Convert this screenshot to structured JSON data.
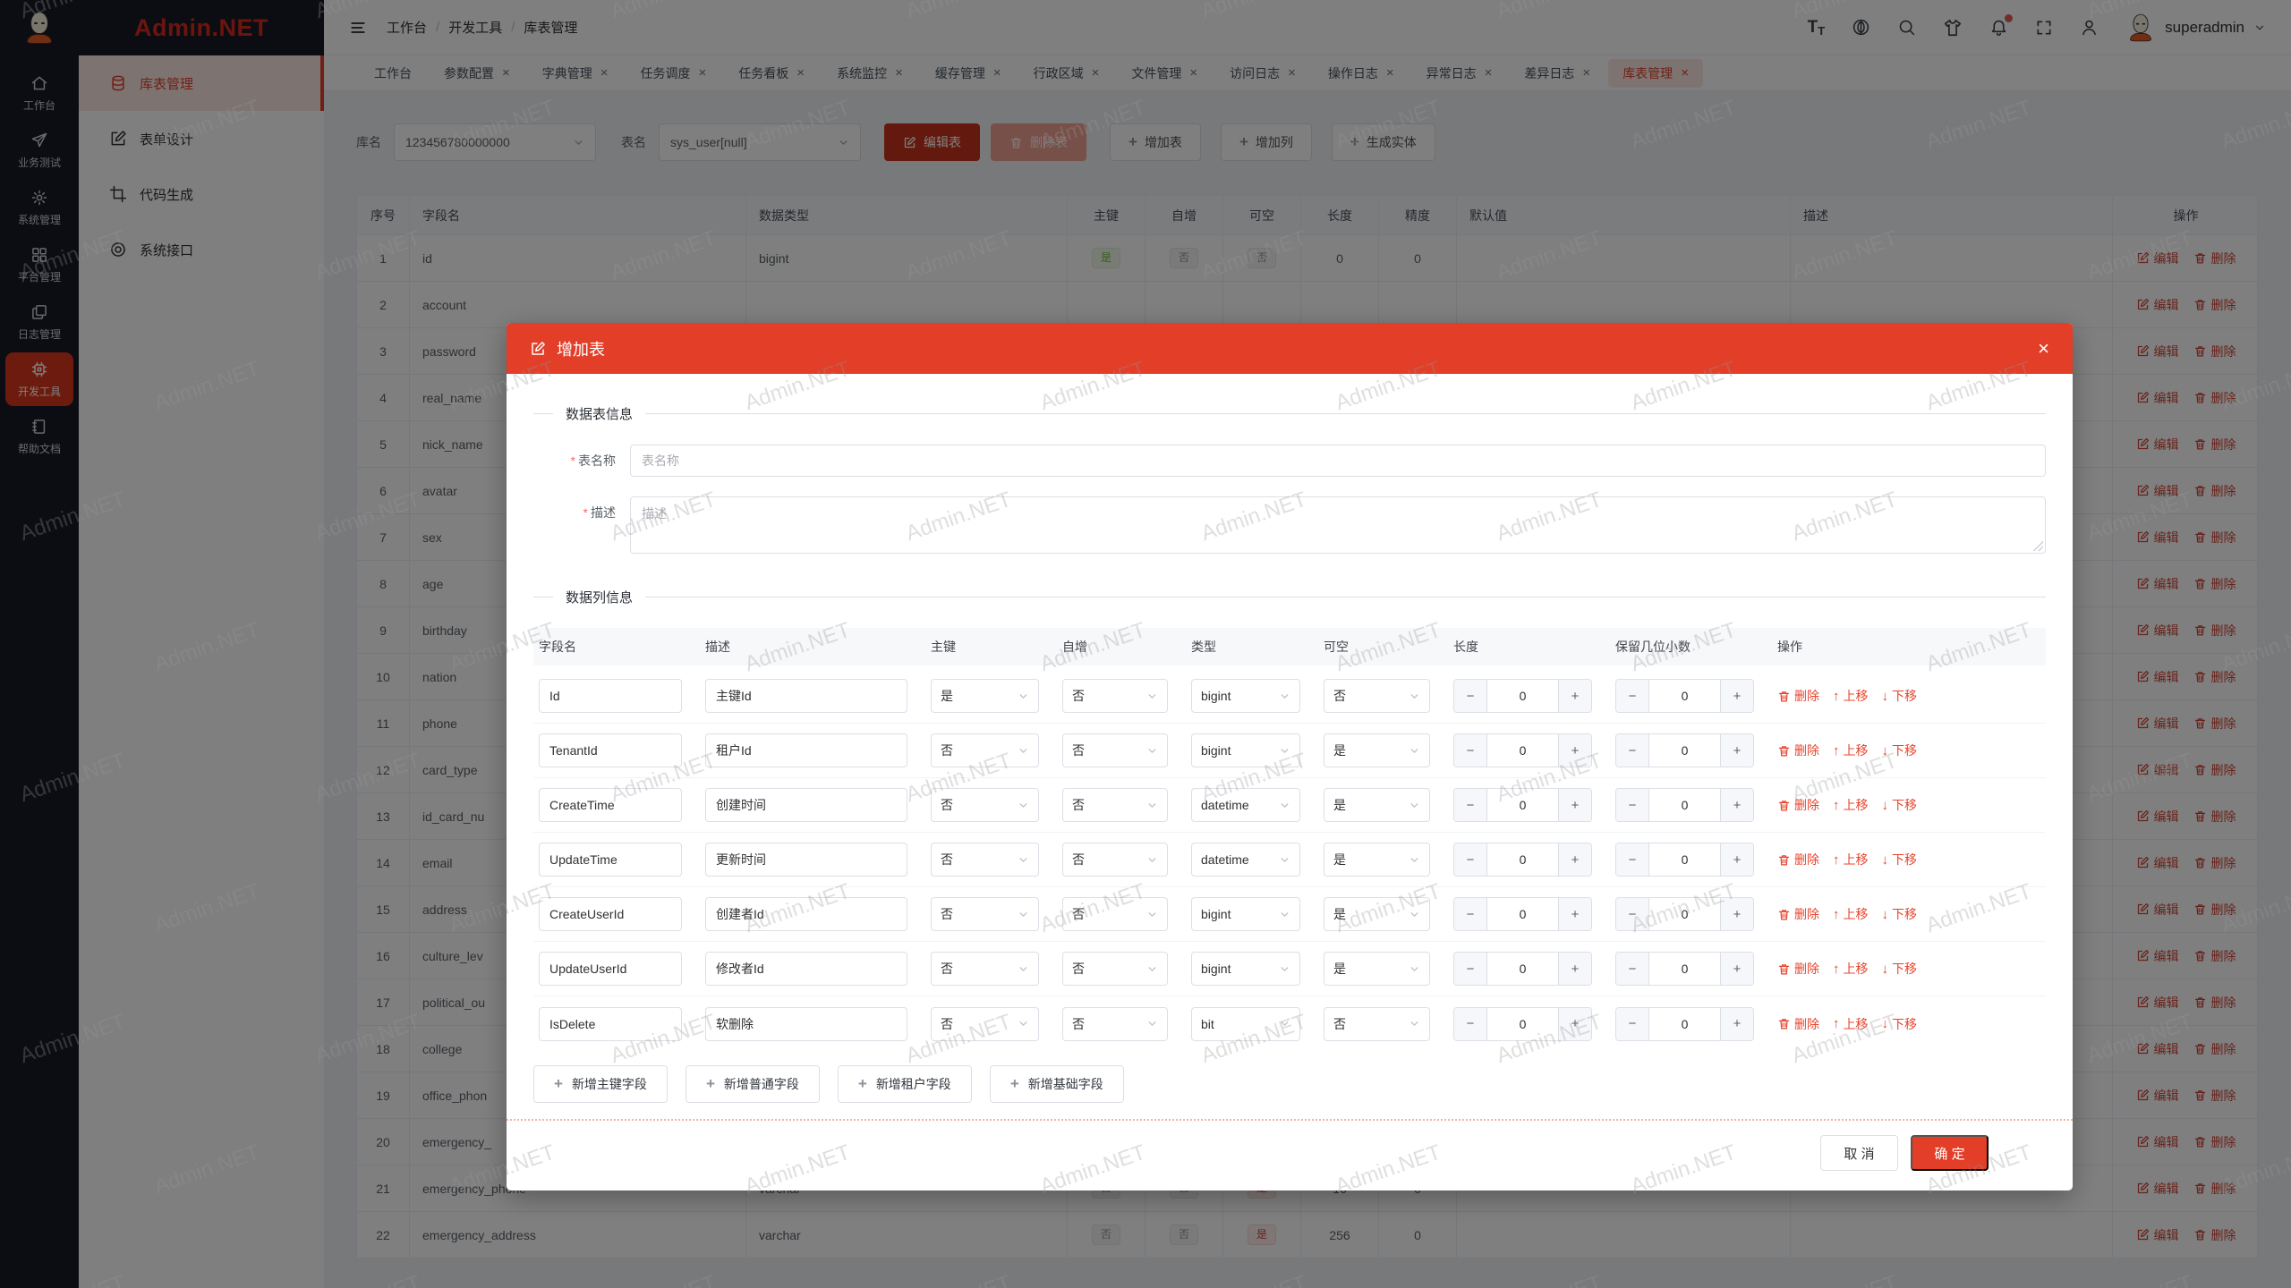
{
  "watermark": "Admin.NET",
  "theme": {
    "accent": "#e23e28",
    "dark_rail": "#161b26",
    "tag_green": "#67c23a",
    "tag_gray": "#909399",
    "tag_red": "#cf4436"
  },
  "header": {
    "logo_text": "Admin.NET",
    "breadcrumb": [
      "工作台",
      "开发工具",
      "库表管理"
    ],
    "icons": [
      "font-size",
      "language",
      "search",
      "theme",
      "notification",
      "fullscreen",
      "user"
    ],
    "username": "superadmin"
  },
  "rail": {
    "items": [
      {
        "label": "工作台",
        "icon": "home",
        "active": false
      },
      {
        "label": "业务测试",
        "icon": "plane",
        "active": false
      },
      {
        "label": "系统管理",
        "icon": "gear",
        "active": false
      },
      {
        "label": "平台管理",
        "icon": "grid",
        "active": false
      },
      {
        "label": "日志管理",
        "icon": "docs",
        "active": false
      },
      {
        "label": "开发工具",
        "icon": "chip",
        "active": true
      },
      {
        "label": "帮助文档",
        "icon": "book",
        "active": false
      }
    ]
  },
  "submenu": {
    "items": [
      {
        "label": "库表管理",
        "icon": "db",
        "active": true
      },
      {
        "label": "表单设计",
        "icon": "form",
        "active": false
      },
      {
        "label": "代码生成",
        "icon": "crop",
        "active": false
      },
      {
        "label": "系统接口",
        "icon": "target",
        "active": false
      }
    ]
  },
  "tabs": [
    {
      "label": "工作台",
      "closable": false,
      "active": false
    },
    {
      "label": "参数配置",
      "closable": true,
      "active": false
    },
    {
      "label": "字典管理",
      "closable": true,
      "active": false
    },
    {
      "label": "任务调度",
      "closable": true,
      "active": false
    },
    {
      "label": "任务看板",
      "closable": true,
      "active": false
    },
    {
      "label": "系统监控",
      "closable": true,
      "active": false
    },
    {
      "label": "缓存管理",
      "closable": true,
      "active": false
    },
    {
      "label": "行政区域",
      "closable": true,
      "active": false
    },
    {
      "label": "文件管理",
      "closable": true,
      "active": false
    },
    {
      "label": "访问日志",
      "closable": true,
      "active": false
    },
    {
      "label": "操作日志",
      "closable": true,
      "active": false
    },
    {
      "label": "异常日志",
      "closable": true,
      "active": false
    },
    {
      "label": "差异日志",
      "closable": true,
      "active": false
    },
    {
      "label": "库表管理",
      "closable": true,
      "active": true
    }
  ],
  "toolbar": {
    "db_label": "库名",
    "db_value": "123456780000000",
    "table_label": "表名",
    "table_value": "sys_user[null]",
    "edit_table": "编辑表",
    "delete_table": "删除表",
    "add_table": "增加表",
    "add_column": "增加列",
    "gen_entity": "生成实体"
  },
  "table": {
    "headers": [
      "序号",
      "字段名",
      "数据类型",
      "主键",
      "自增",
      "可空",
      "长度",
      "精度",
      "默认值",
      "描述",
      "操作"
    ],
    "edit_label": "编辑",
    "delete_label": "删除",
    "rows": [
      {
        "no": "1",
        "name": "id",
        "type": "bigint",
        "pk": "是",
        "inc": "否",
        "nul": "否",
        "len": "0",
        "prec": "0",
        "def": "",
        "desc": ""
      },
      {
        "no": "2",
        "name": "account",
        "type": "",
        "pk": "",
        "inc": "",
        "nul": "",
        "len": "",
        "prec": "",
        "def": "",
        "desc": ""
      },
      {
        "no": "3",
        "name": "password",
        "type": "",
        "pk": "",
        "inc": "",
        "nul": "",
        "len": "",
        "prec": "",
        "def": "",
        "desc": ""
      },
      {
        "no": "4",
        "name": "real_name",
        "type": "",
        "pk": "",
        "inc": "",
        "nul": "",
        "len": "",
        "prec": "",
        "def": "",
        "desc": ""
      },
      {
        "no": "5",
        "name": "nick_name",
        "type": "",
        "pk": "",
        "inc": "",
        "nul": "",
        "len": "",
        "prec": "",
        "def": "",
        "desc": ""
      },
      {
        "no": "6",
        "name": "avatar",
        "type": "",
        "pk": "",
        "inc": "",
        "nul": "",
        "len": "",
        "prec": "",
        "def": "",
        "desc": ""
      },
      {
        "no": "7",
        "name": "sex",
        "type": "",
        "pk": "",
        "inc": "",
        "nul": "",
        "len": "",
        "prec": "",
        "def": "",
        "desc": ""
      },
      {
        "no": "8",
        "name": "age",
        "type": "",
        "pk": "",
        "inc": "",
        "nul": "",
        "len": "",
        "prec": "",
        "def": "",
        "desc": ""
      },
      {
        "no": "9",
        "name": "birthday",
        "type": "",
        "pk": "",
        "inc": "",
        "nul": "",
        "len": "",
        "prec": "",
        "def": "",
        "desc": ""
      },
      {
        "no": "10",
        "name": "nation",
        "type": "",
        "pk": "",
        "inc": "",
        "nul": "",
        "len": "",
        "prec": "",
        "def": "",
        "desc": ""
      },
      {
        "no": "11",
        "name": "phone",
        "type": "",
        "pk": "",
        "inc": "",
        "nul": "",
        "len": "",
        "prec": "",
        "def": "",
        "desc": ""
      },
      {
        "no": "12",
        "name": "card_type",
        "type": "",
        "pk": "",
        "inc": "",
        "nul": "",
        "len": "",
        "prec": "",
        "def": "",
        "desc": ""
      },
      {
        "no": "13",
        "name": "id_card_nu",
        "type": "",
        "pk": "",
        "inc": "",
        "nul": "",
        "len": "",
        "prec": "",
        "def": "",
        "desc": ""
      },
      {
        "no": "14",
        "name": "email",
        "type": "",
        "pk": "",
        "inc": "",
        "nul": "",
        "len": "",
        "prec": "",
        "def": "",
        "desc": ""
      },
      {
        "no": "15",
        "name": "address",
        "type": "",
        "pk": "",
        "inc": "",
        "nul": "",
        "len": "",
        "prec": "",
        "def": "",
        "desc": ""
      },
      {
        "no": "16",
        "name": "culture_lev",
        "type": "",
        "pk": "",
        "inc": "",
        "nul": "",
        "len": "",
        "prec": "",
        "def": "",
        "desc": ""
      },
      {
        "no": "17",
        "name": "political_ou",
        "type": "",
        "pk": "",
        "inc": "",
        "nul": "",
        "len": "",
        "prec": "",
        "def": "",
        "desc": ""
      },
      {
        "no": "18",
        "name": "college",
        "type": "",
        "pk": "",
        "inc": "",
        "nul": "",
        "len": "",
        "prec": "",
        "def": "",
        "desc": ""
      },
      {
        "no": "19",
        "name": "office_phon",
        "type": "",
        "pk": "",
        "inc": "",
        "nul": "",
        "len": "",
        "prec": "",
        "def": "",
        "desc": ""
      },
      {
        "no": "20",
        "name": "emergency_",
        "type": "",
        "pk": "",
        "inc": "",
        "nul": "",
        "len": "",
        "prec": "",
        "def": "",
        "desc": ""
      },
      {
        "no": "21",
        "name": "emergency_phone",
        "type": "varchar",
        "pk": "否",
        "inc": "否",
        "nul": "是",
        "len": "16",
        "prec": "0",
        "def": "",
        "desc": ""
      },
      {
        "no": "22",
        "name": "emergency_address",
        "type": "varchar",
        "pk": "否",
        "inc": "否",
        "nul": "是",
        "len": "256",
        "prec": "0",
        "def": "",
        "desc": ""
      }
    ]
  },
  "modal": {
    "title": "增加表",
    "section_table_info": "数据表信息",
    "section_column_info": "数据列信息",
    "form": {
      "name_label": "表名称",
      "name_placeholder": "表名称",
      "name_value": "",
      "desc_label": "描述",
      "desc_placeholder": "描述",
      "desc_value": ""
    },
    "col_headers": [
      "字段名",
      "描述",
      "主键",
      "自增",
      "类型",
      "可空",
      "长度",
      "保留几位小数",
      "操作"
    ],
    "row_actions": {
      "delete": "删除",
      "up": "上移",
      "down": "下移"
    },
    "rows": [
      {
        "name": "Id",
        "desc": "主键Id",
        "pk": "是",
        "inc": "否",
        "type": "bigint",
        "nul": "否",
        "len": "0",
        "dec": "0"
      },
      {
        "name": "TenantId",
        "desc": "租户Id",
        "pk": "否",
        "inc": "否",
        "type": "bigint",
        "nul": "是",
        "len": "0",
        "dec": "0"
      },
      {
        "name": "CreateTime",
        "desc": "创建时间",
        "pk": "否",
        "inc": "否",
        "type": "datetime",
        "nul": "是",
        "len": "0",
        "dec": "0"
      },
      {
        "name": "UpdateTime",
        "desc": "更新时间",
        "pk": "否",
        "inc": "否",
        "type": "datetime",
        "nul": "是",
        "len": "0",
        "dec": "0"
      },
      {
        "name": "CreateUserId",
        "desc": "创建者Id",
        "pk": "否",
        "inc": "否",
        "type": "bigint",
        "nul": "是",
        "len": "0",
        "dec": "0"
      },
      {
        "name": "UpdateUserId",
        "desc": "修改者Id",
        "pk": "否",
        "inc": "否",
        "type": "bigint",
        "nul": "是",
        "len": "0",
        "dec": "0"
      },
      {
        "name": "IsDelete",
        "desc": "软删除",
        "pk": "否",
        "inc": "否",
        "type": "bit",
        "nul": "否",
        "len": "0",
        "dec": "0"
      }
    ],
    "add_buttons": [
      "新增主键字段",
      "新增普通字段",
      "新增租户字段",
      "新增基础字段"
    ],
    "footer": {
      "cancel": "取 消",
      "ok": "确 定"
    }
  }
}
